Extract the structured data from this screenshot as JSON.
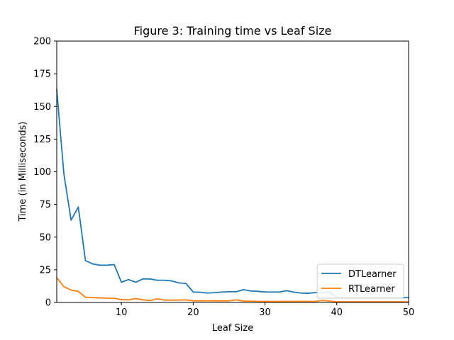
{
  "chart_data": {
    "type": "line",
    "title": "Figure 3: Training time vs Leaf Size",
    "xlabel": "Leaf Size",
    "ylabel": "Time (in Milliseconds)",
    "xlim": [
      1,
      50
    ],
    "ylim": [
      0,
      200
    ],
    "xticks": [
      10,
      20,
      30,
      40,
      50
    ],
    "yticks": [
      0,
      25,
      50,
      75,
      100,
      125,
      150,
      175,
      200
    ],
    "grid": false,
    "legend_position": "lower-right",
    "x": [
      1,
      2,
      3,
      4,
      5,
      6,
      7,
      8,
      9,
      10,
      11,
      12,
      13,
      14,
      15,
      16,
      17,
      18,
      19,
      20,
      21,
      22,
      23,
      24,
      25,
      26,
      27,
      28,
      29,
      30,
      31,
      32,
      33,
      34,
      35,
      36,
      37,
      38,
      39,
      40,
      41,
      42,
      43,
      44,
      45,
      46,
      47,
      48,
      49,
      50
    ],
    "series": [
      {
        "name": "DTLearner",
        "color": "#1f77b4",
        "values": [
          163,
          98,
          63,
          73,
          32,
          29.5,
          28.5,
          28.5,
          29,
          15.5,
          17.5,
          15.5,
          18,
          18,
          17,
          17,
          16.5,
          15,
          14.5,
          8,
          7.8,
          7.2,
          7.5,
          8,
          8.2,
          8.2,
          9.8,
          8.8,
          8.5,
          8,
          8,
          8,
          9,
          8,
          7.2,
          7,
          7.5,
          7.5,
          8,
          3.8,
          3.5,
          3.5,
          3.5,
          3.5,
          3.5,
          3.5,
          3.6,
          3.6,
          3.6,
          3.7
        ]
      },
      {
        "name": "RTLearner",
        "color": "#ff7f0e",
        "values": [
          19,
          12,
          9.5,
          8.5,
          4,
          3.7,
          3.5,
          3.3,
          3.2,
          2.2,
          2,
          3,
          2,
          1.5,
          2.8,
          1.8,
          1.8,
          1.8,
          2,
          1.2,
          1.2,
          1.3,
          1.2,
          1.2,
          1.2,
          2,
          1,
          1,
          0.8,
          0.8,
          0.8,
          0.8,
          0.8,
          0.8,
          0.9,
          0.8,
          0.8,
          1.5,
          1,
          0.5,
          0.5,
          0.5,
          0.5,
          0.5,
          0.5,
          0.5,
          0.5,
          0.5,
          0.5,
          0.5
        ]
      }
    ]
  }
}
